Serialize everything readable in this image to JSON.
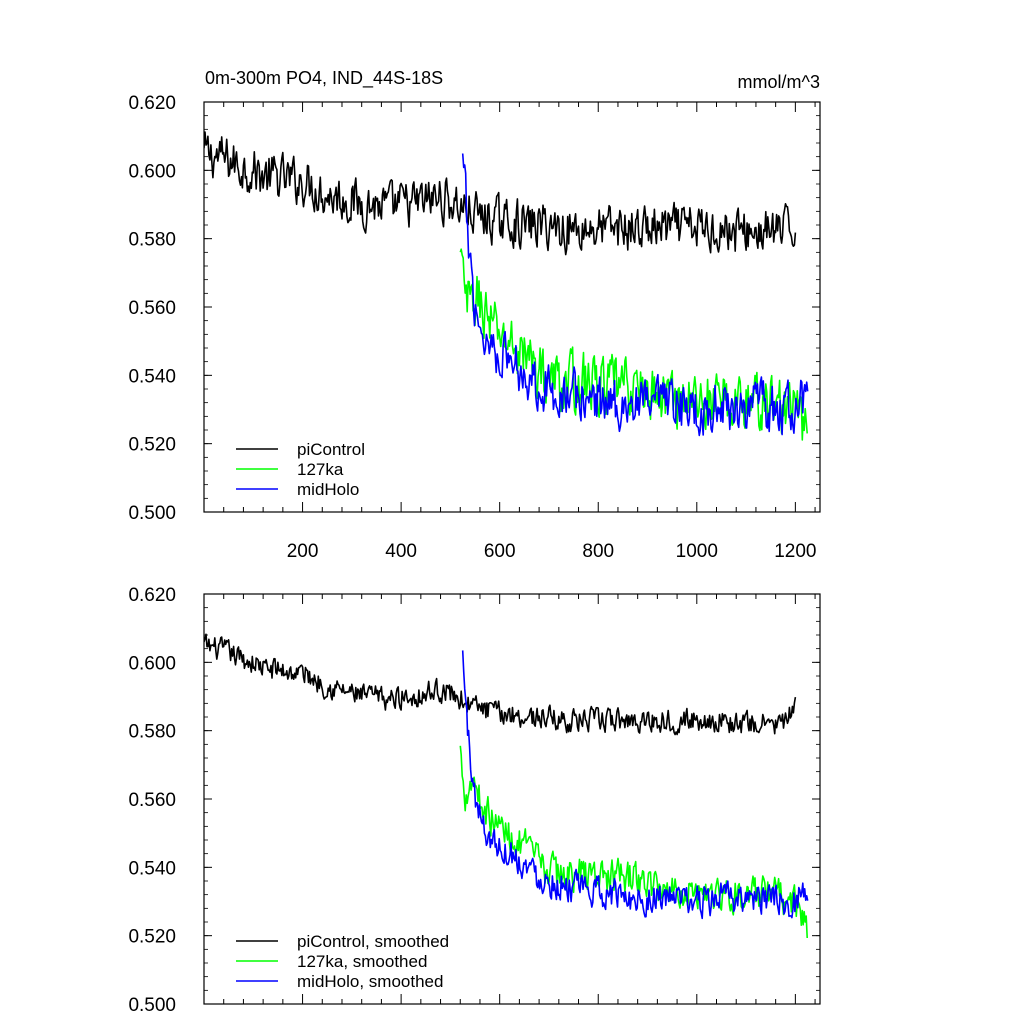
{
  "chart_data": [
    {
      "type": "line",
      "title": "0m-300m PO4, IND_44S-18S",
      "units": "mmol/m^3",
      "xlim": [
        0,
        1250
      ],
      "ylim": [
        0.5,
        0.62
      ],
      "x_ticks": [
        200,
        400,
        600,
        800,
        1000,
        1200
      ],
      "y_ticks": [
        "0.500",
        "0.520",
        "0.540",
        "0.560",
        "0.580",
        "0.600",
        "0.620"
      ],
      "grid": false,
      "legend_position": "bottom-left",
      "series": [
        {
          "name": "piControl",
          "color": "#000000",
          "x": [
            0,
            25,
            50,
            75,
            100,
            125,
            150,
            175,
            200,
            225,
            250,
            275,
            300,
            325,
            350,
            375,
            400,
            425,
            450,
            475,
            500,
            525,
            550,
            575,
            600,
            625,
            650,
            675,
            700,
            725,
            750,
            775,
            800,
            825,
            850,
            875,
            900,
            925,
            950,
            975,
            1000,
            1025,
            1050,
            1075,
            1100,
            1125,
            1150,
            1175,
            1200
          ],
          "y": [
            0.605,
            0.604,
            0.603,
            0.601,
            0.6,
            0.598,
            0.598,
            0.597,
            0.597,
            0.595,
            0.593,
            0.592,
            0.591,
            0.59,
            0.59,
            0.589,
            0.59,
            0.59,
            0.591,
            0.592,
            0.591,
            0.589,
            0.587,
            0.586,
            0.585,
            0.585,
            0.584,
            0.584,
            0.584,
            0.583,
            0.583,
            0.583,
            0.583,
            0.583,
            0.583,
            0.583,
            0.583,
            0.583,
            0.583,
            0.583,
            0.583,
            0.583,
            0.583,
            0.582,
            0.582,
            0.582,
            0.582,
            0.582,
            0.583
          ],
          "noise": 0.006
        },
        {
          "name": "127ka",
          "color": "#00ff00",
          "x": [
            520,
            530,
            540,
            550,
            560,
            575,
            590,
            600,
            625,
            650,
            675,
            700,
            725,
            750,
            775,
            800,
            825,
            850,
            875,
            900,
            925,
            950,
            975,
            1000,
            1025,
            1050,
            1075,
            1100,
            1125,
            1150,
            1175,
            1200,
            1225
          ],
          "y": [
            0.574,
            0.563,
            0.56,
            0.562,
            0.562,
            0.557,
            0.553,
            0.552,
            0.549,
            0.546,
            0.542,
            0.539,
            0.538,
            0.538,
            0.538,
            0.537,
            0.537,
            0.537,
            0.536,
            0.535,
            0.534,
            0.534,
            0.533,
            0.533,
            0.533,
            0.532,
            0.532,
            0.532,
            0.532,
            0.532,
            0.531,
            0.53,
            0.522
          ],
          "noise": 0.0075
        },
        {
          "name": "midHolo",
          "color": "#0000ff",
          "x": [
            525,
            535,
            545,
            555,
            570,
            585,
            600,
            625,
            650,
            675,
            700,
            725,
            750,
            775,
            800,
            825,
            850,
            875,
            900,
            925,
            950,
            975,
            1000,
            1025,
            1050,
            1075,
            1100,
            1125,
            1150,
            1175,
            1200,
            1225
          ],
          "y": [
            0.603,
            0.582,
            0.566,
            0.557,
            0.551,
            0.549,
            0.547,
            0.544,
            0.541,
            0.538,
            0.536,
            0.535,
            0.534,
            0.533,
            0.533,
            0.532,
            0.532,
            0.531,
            0.531,
            0.531,
            0.531,
            0.53,
            0.53,
            0.53,
            0.531,
            0.531,
            0.531,
            0.531,
            0.53,
            0.53,
            0.53,
            0.534
          ],
          "noise": 0.0065
        }
      ]
    },
    {
      "type": "line",
      "title": "",
      "units": "",
      "xlim": [
        0,
        1250
      ],
      "ylim": [
        0.5,
        0.62
      ],
      "x_ticks": [],
      "y_ticks": [
        "0.500",
        "0.520",
        "0.540",
        "0.560",
        "0.580",
        "0.600",
        "0.620"
      ],
      "grid": false,
      "legend_position": "bottom-left",
      "series": [
        {
          "name": "piControl, smoothed",
          "color": "#000000",
          "x": [
            0,
            25,
            50,
            75,
            100,
            125,
            150,
            175,
            200,
            225,
            250,
            275,
            300,
            325,
            350,
            375,
            400,
            425,
            450,
            475,
            500,
            525,
            550,
            575,
            600,
            625,
            650,
            675,
            700,
            725,
            750,
            775,
            800,
            825,
            850,
            875,
            900,
            925,
            950,
            975,
            1000,
            1025,
            1050,
            1075,
            1100,
            1125,
            1150,
            1175,
            1200
          ],
          "y": [
            0.605,
            0.604,
            0.603,
            0.601,
            0.6,
            0.598,
            0.598,
            0.597,
            0.597,
            0.595,
            0.593,
            0.592,
            0.591,
            0.59,
            0.59,
            0.589,
            0.59,
            0.59,
            0.591,
            0.592,
            0.591,
            0.589,
            0.587,
            0.586,
            0.585,
            0.585,
            0.584,
            0.584,
            0.584,
            0.583,
            0.583,
            0.583,
            0.583,
            0.583,
            0.583,
            0.583,
            0.583,
            0.583,
            0.583,
            0.583,
            0.583,
            0.583,
            0.583,
            0.582,
            0.582,
            0.582,
            0.582,
            0.582,
            0.586
          ],
          "noise": 0.003
        },
        {
          "name": "127ka, smoothed",
          "color": "#00ff00",
          "x": [
            520,
            530,
            540,
            550,
            560,
            575,
            590,
            600,
            625,
            650,
            675,
            700,
            725,
            750,
            775,
            800,
            825,
            850,
            875,
            900,
            925,
            950,
            975,
            1000,
            1025,
            1050,
            1075,
            1100,
            1125,
            1150,
            1175,
            1200,
            1225
          ],
          "y": [
            0.574,
            0.562,
            0.565,
            0.566,
            0.56,
            0.556,
            0.553,
            0.552,
            0.549,
            0.546,
            0.542,
            0.539,
            0.538,
            0.538,
            0.538,
            0.538,
            0.537,
            0.537,
            0.537,
            0.535,
            0.534,
            0.534,
            0.533,
            0.533,
            0.533,
            0.532,
            0.532,
            0.532,
            0.532,
            0.532,
            0.531,
            0.53,
            0.521
          ],
          "noise": 0.0045
        },
        {
          "name": "midHolo, smoothed",
          "color": "#0000ff",
          "x": [
            525,
            535,
            545,
            555,
            570,
            585,
            600,
            625,
            650,
            675,
            700,
            725,
            750,
            775,
            800,
            825,
            850,
            875,
            900,
            925,
            950,
            975,
            1000,
            1025,
            1050,
            1075,
            1100,
            1125,
            1150,
            1175,
            1200,
            1225
          ],
          "y": [
            0.602,
            0.58,
            0.566,
            0.557,
            0.551,
            0.548,
            0.546,
            0.544,
            0.541,
            0.538,
            0.536,
            0.535,
            0.534,
            0.533,
            0.533,
            0.532,
            0.532,
            0.531,
            0.531,
            0.531,
            0.531,
            0.53,
            0.53,
            0.53,
            0.531,
            0.531,
            0.531,
            0.531,
            0.53,
            0.53,
            0.53,
            0.535
          ],
          "noise": 0.004
        }
      ]
    }
  ]
}
